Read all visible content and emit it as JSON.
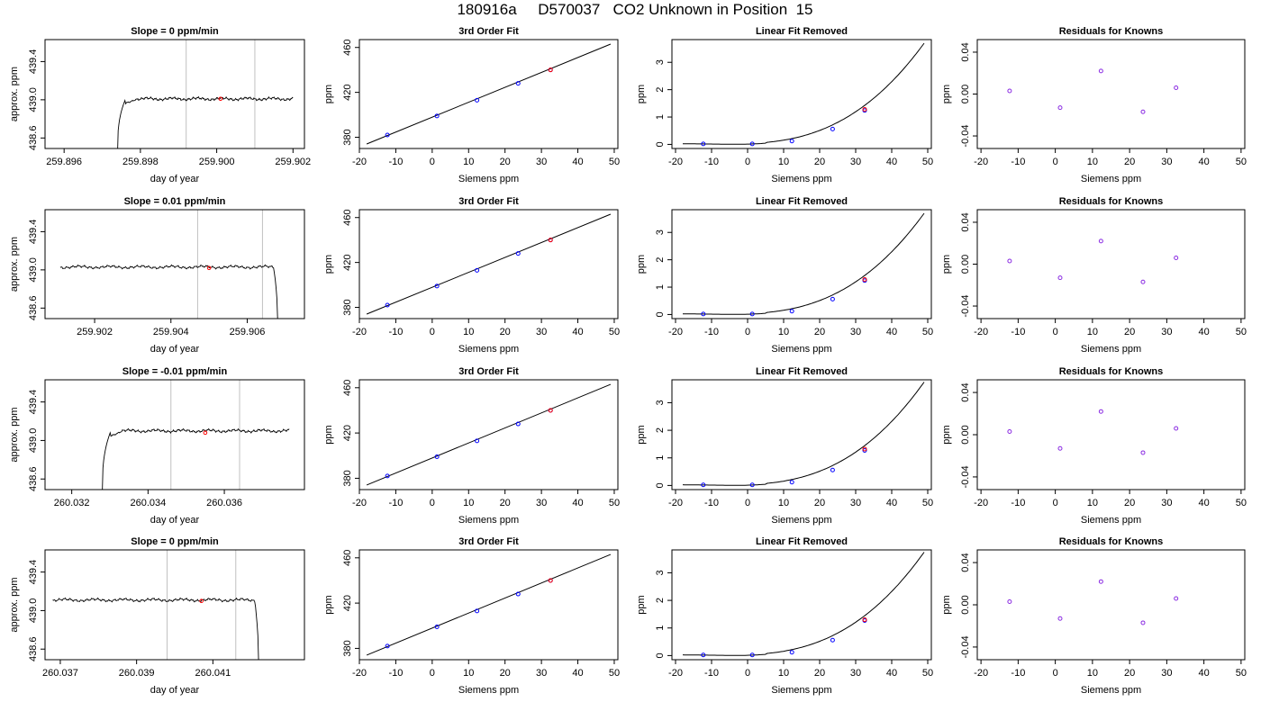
{
  "page": {
    "title": "180916a     D570037   CO2 Unknown in Position  15"
  },
  "style": {
    "trace_color": "#000000",
    "vline_color": "#c0c0c0",
    "known_point_color": "#0000ff",
    "unknown_point_color": "#ff0000",
    "residual_point_color": "#8a2be2"
  },
  "chart_data": [
    {
      "type": "line",
      "panel": "time-series",
      "title": "Slope =  0  ppm/min",
      "xlabel": "day of year",
      "ylabel": "approx. ppm",
      "xlim": [
        259.8955,
        259.9023
      ],
      "ylim": [
        438.49,
        439.63
      ],
      "xticks": [
        259.896,
        259.898,
        259.9,
        259.902
      ],
      "xtick_labels": [
        "259.896",
        "259.898",
        "259.900",
        "259.902"
      ],
      "yticks": [
        438.6,
        439.0,
        439.4
      ],
      "ytick_labels": [
        "438.6",
        "439.0",
        "439.4"
      ],
      "vlines": [
        259.8992,
        259.901
      ],
      "marker": {
        "x": 259.9001,
        "y": 439.01
      },
      "trace": {
        "x_start": 259.8974,
        "x_end": 259.902,
        "drop_side": "start",
        "level": 439.01
      },
      "grid": false
    },
    {
      "type": "scatter",
      "panel": "fit",
      "title": "3rd Order Fit",
      "xlabel": "Siemens ppm",
      "ylabel": "ppm",
      "xlim": [
        -20,
        51
      ],
      "ylim": [
        370,
        467
      ],
      "xticks": [
        -20,
        -10,
        0,
        10,
        20,
        30,
        40,
        50
      ],
      "xtick_labels": [
        "-20",
        "-10",
        "0",
        "10",
        "20",
        "30",
        "40",
        "50"
      ],
      "yticks": [
        380,
        420,
        460
      ],
      "ytick_labels": [
        "380",
        "420",
        "460"
      ],
      "line": {
        "x": [
          -18,
          49
        ],
        "y": [
          374,
          463
        ]
      },
      "knowns": {
        "x": [
          -12.3,
          1.3,
          12.3,
          23.6,
          32.5
        ],
        "y": [
          382,
          399,
          413,
          428,
          440
        ]
      },
      "unknown": {
        "x": 32.5,
        "y": 440
      },
      "grid": false
    },
    {
      "type": "scatter",
      "panel": "linear-removed",
      "title": "Linear Fit Removed",
      "xlabel": "Siemens ppm",
      "ylabel": "ppm",
      "xlim": [
        -21,
        51
      ],
      "ylim": [
        -0.15,
        3.83
      ],
      "xticks": [
        -20,
        -10,
        0,
        10,
        20,
        30,
        40,
        50
      ],
      "xtick_labels": [
        "-20",
        "-10",
        "0",
        "10",
        "20",
        "30",
        "40",
        "50"
      ],
      "yticks": [
        0,
        1,
        2,
        3
      ],
      "ytick_labels": [
        "0",
        "1",
        "2",
        "3"
      ],
      "curve": {
        "x_start": -18,
        "x_end": 49,
        "y_end": 3.7
      },
      "knowns": {
        "x": [
          -12.3,
          1.3,
          12.3,
          23.6,
          32.5
        ],
        "y": [
          0.02,
          0.02,
          0.12,
          0.56,
          1.24
        ]
      },
      "unknown": {
        "x": 32.5,
        "y": 1.28
      },
      "grid": false
    },
    {
      "type": "scatter",
      "panel": "residuals",
      "title": "Residuals for Knowns",
      "xlabel": "Siemens ppm",
      "ylabel": "ppm",
      "xlim": [
        -21,
        51
      ],
      "ylim": [
        -0.052,
        0.052
      ],
      "xticks": [
        -20,
        -10,
        0,
        10,
        20,
        30,
        40,
        50
      ],
      "xtick_labels": [
        "-20",
        "-10",
        "0",
        "10",
        "20",
        "30",
        "40",
        "50"
      ],
      "yticks": [
        -0.04,
        0,
        0.04
      ],
      "ytick_labels": [
        "-0.04",
        "0.00",
        "0.04"
      ],
      "points": {
        "x": [
          -12.3,
          1.3,
          12.3,
          23.6,
          32.5
        ],
        "y": [
          0.003,
          -0.013,
          0.022,
          -0.017,
          0.006
        ]
      },
      "grid": false
    },
    {
      "type": "line",
      "panel": "time-series",
      "title": "Slope =  0.01  ppm/min",
      "xlabel": "day of year",
      "ylabel": "approx. ppm",
      "xlim": [
        259.9007,
        259.9075
      ],
      "ylim": [
        438.49,
        439.63
      ],
      "xticks": [
        259.902,
        259.904,
        259.906
      ],
      "xtick_labels": [
        "259.902",
        "259.904",
        "259.906"
      ],
      "yticks": [
        438.6,
        439.0,
        439.4
      ],
      "ytick_labels": [
        "438.6",
        "439.0",
        "439.4"
      ],
      "vlines": [
        259.9047,
        259.9064
      ],
      "marker": {
        "x": 259.905,
        "y": 439.02
      },
      "trace": {
        "x_start": 259.9011,
        "x_end": 259.9068,
        "drop_side": "end",
        "level": 439.03
      },
      "grid": false
    },
    {
      "type": "scatter",
      "panel": "fit",
      "title": "3rd Order Fit",
      "xlabel": "Siemens ppm",
      "ylabel": "ppm",
      "xlim": [
        -20,
        51
      ],
      "ylim": [
        370,
        467
      ],
      "xticks": [
        -20,
        -10,
        0,
        10,
        20,
        30,
        40,
        50
      ],
      "xtick_labels": [
        "-20",
        "-10",
        "0",
        "10",
        "20",
        "30",
        "40",
        "50"
      ],
      "yticks": [
        380,
        420,
        460
      ],
      "ytick_labels": [
        "380",
        "420",
        "460"
      ],
      "line": {
        "x": [
          -18,
          49
        ],
        "y": [
          374,
          463
        ]
      },
      "knowns": {
        "x": [
          -12.3,
          1.3,
          12.3,
          23.6,
          32.5
        ],
        "y": [
          382,
          399,
          413,
          428,
          440
        ]
      },
      "unknown": {
        "x": 32.5,
        "y": 440
      },
      "grid": false
    },
    {
      "type": "scatter",
      "panel": "linear-removed",
      "title": "Linear Fit Removed",
      "xlabel": "Siemens ppm",
      "ylabel": "ppm",
      "xlim": [
        -21,
        51
      ],
      "ylim": [
        -0.15,
        3.83
      ],
      "xticks": [
        -20,
        -10,
        0,
        10,
        20,
        30,
        40,
        50
      ],
      "xtick_labels": [
        "-20",
        "-10",
        "0",
        "10",
        "20",
        "30",
        "40",
        "50"
      ],
      "yticks": [
        0,
        1,
        2,
        3
      ],
      "ytick_labels": [
        "0",
        "1",
        "2",
        "3"
      ],
      "curve": {
        "x_start": -18,
        "x_end": 49,
        "y_end": 3.7
      },
      "knowns": {
        "x": [
          -12.3,
          1.3,
          12.3,
          23.6,
          32.5
        ],
        "y": [
          0.02,
          0.02,
          0.12,
          0.56,
          1.24
        ]
      },
      "unknown": {
        "x": 32.5,
        "y": 1.28
      },
      "grid": false
    },
    {
      "type": "scatter",
      "panel": "residuals",
      "title": "Residuals for Knowns",
      "xlabel": "Siemens ppm",
      "ylabel": "ppm",
      "xlim": [
        -21,
        51
      ],
      "ylim": [
        -0.052,
        0.052
      ],
      "xticks": [
        -20,
        -10,
        0,
        10,
        20,
        30,
        40,
        50
      ],
      "xtick_labels": [
        "-20",
        "-10",
        "0",
        "10",
        "20",
        "30",
        "40",
        "50"
      ],
      "yticks": [
        -0.04,
        0,
        0.04
      ],
      "ytick_labels": [
        "-0.04",
        "0.00",
        "0.04"
      ],
      "points": {
        "x": [
          -12.3,
          1.3,
          12.3,
          23.6,
          32.5
        ],
        "y": [
          0.003,
          -0.013,
          0.022,
          -0.017,
          0.006
        ]
      },
      "grid": false
    },
    {
      "type": "line",
      "panel": "time-series",
      "title": "Slope =  -0.01  ppm/min",
      "xlabel": "day of year",
      "ylabel": "approx. ppm",
      "xlim": [
        260.0313,
        260.0381
      ],
      "ylim": [
        438.49,
        439.63
      ],
      "xticks": [
        260.032,
        260.034,
        260.036
      ],
      "xtick_labels": [
        "260.032",
        "260.034",
        "260.036"
      ],
      "yticks": [
        438.6,
        439.0,
        439.4
      ],
      "ytick_labels": [
        "438.6",
        "439.0",
        "439.4"
      ],
      "vlines": [
        260.0346,
        260.0364
      ],
      "marker": {
        "x": 260.0355,
        "y": 439.08
      },
      "trace": {
        "x_start": 260.0328,
        "x_end": 260.0377,
        "drop_side": "start",
        "level": 439.1
      },
      "grid": false
    },
    {
      "type": "scatter",
      "panel": "fit",
      "title": "3rd Order Fit",
      "xlabel": "Siemens ppm",
      "ylabel": "ppm",
      "xlim": [
        -20,
        51
      ],
      "ylim": [
        370,
        467
      ],
      "xticks": [
        -20,
        -10,
        0,
        10,
        20,
        30,
        40,
        50
      ],
      "xtick_labels": [
        "-20",
        "-10",
        "0",
        "10",
        "20",
        "30",
        "40",
        "50"
      ],
      "yticks": [
        380,
        420,
        460
      ],
      "ytick_labels": [
        "380",
        "420",
        "460"
      ],
      "line": {
        "x": [
          -18,
          49
        ],
        "y": [
          374,
          463
        ]
      },
      "knowns": {
        "x": [
          -12.3,
          1.3,
          12.3,
          23.6,
          32.5
        ],
        "y": [
          382,
          399,
          413,
          428,
          440
        ]
      },
      "unknown": {
        "x": 32.5,
        "y": 440
      },
      "grid": false
    },
    {
      "type": "scatter",
      "panel": "linear-removed",
      "title": "Linear Fit Removed",
      "xlabel": "Siemens ppm",
      "ylabel": "ppm",
      "xlim": [
        -21,
        51
      ],
      "ylim": [
        -0.15,
        3.83
      ],
      "xticks": [
        -20,
        -10,
        0,
        10,
        20,
        30,
        40,
        50
      ],
      "xtick_labels": [
        "-20",
        "-10",
        "0",
        "10",
        "20",
        "30",
        "40",
        "50"
      ],
      "yticks": [
        0,
        1,
        2,
        3
      ],
      "ytick_labels": [
        "0",
        "1",
        "2",
        "3"
      ],
      "curve": {
        "x_start": -18,
        "x_end": 49,
        "y_end": 3.75
      },
      "knowns": {
        "x": [
          -12.3,
          1.3,
          12.3,
          23.6,
          32.5
        ],
        "y": [
          0.02,
          0.02,
          0.12,
          0.56,
          1.27
        ]
      },
      "unknown": {
        "x": 32.5,
        "y": 1.32
      },
      "grid": false
    },
    {
      "type": "scatter",
      "panel": "residuals",
      "title": "Residuals for Knowns",
      "xlabel": "Siemens ppm",
      "ylabel": "ppm",
      "xlim": [
        -21,
        51
      ],
      "ylim": [
        -0.052,
        0.052
      ],
      "xticks": [
        -20,
        -10,
        0,
        10,
        20,
        30,
        40,
        50
      ],
      "xtick_labels": [
        "-20",
        "-10",
        "0",
        "10",
        "20",
        "30",
        "40",
        "50"
      ],
      "yticks": [
        -0.04,
        0,
        0.04
      ],
      "ytick_labels": [
        "-0.04",
        "0.00",
        "0.04"
      ],
      "points": {
        "x": [
          -12.3,
          1.3,
          12.3,
          23.6,
          32.5
        ],
        "y": [
          0.003,
          -0.013,
          0.022,
          -0.017,
          0.006
        ]
      },
      "grid": false
    },
    {
      "type": "line",
      "panel": "time-series",
      "title": "Slope =  0  ppm/min",
      "xlabel": "day of year",
      "ylabel": "approx. ppm",
      "xlim": [
        260.0366,
        260.0434
      ],
      "ylim": [
        438.49,
        439.63
      ],
      "xticks": [
        260.037,
        260.039,
        260.041
      ],
      "xtick_labels": [
        "260.037",
        "260.039",
        "260.041"
      ],
      "yticks": [
        438.6,
        439.0,
        439.4
      ],
      "ytick_labels": [
        "438.6",
        "439.0",
        "439.4"
      ],
      "vlines": [
        260.0398,
        260.0416
      ],
      "marker": {
        "x": 260.0407,
        "y": 439.1
      },
      "trace": {
        "x_start": 260.0368,
        "x_end": 260.0422,
        "drop_side": "end",
        "level": 439.11
      },
      "grid": false
    },
    {
      "type": "scatter",
      "panel": "fit",
      "title": "3rd Order Fit",
      "xlabel": "Siemens ppm",
      "ylabel": "ppm",
      "xlim": [
        -20,
        51
      ],
      "ylim": [
        370,
        467
      ],
      "xticks": [
        -20,
        -10,
        0,
        10,
        20,
        30,
        40,
        50
      ],
      "xtick_labels": [
        "-20",
        "-10",
        "0",
        "10",
        "20",
        "30",
        "40",
        "50"
      ],
      "yticks": [
        380,
        420,
        460
      ],
      "ytick_labels": [
        "380",
        "420",
        "460"
      ],
      "line": {
        "x": [
          -18,
          49
        ],
        "y": [
          374,
          463
        ]
      },
      "knowns": {
        "x": [
          -12.3,
          1.3,
          12.3,
          23.6,
          32.5
        ],
        "y": [
          382,
          399,
          413,
          428,
          440
        ]
      },
      "unknown": {
        "x": 32.5,
        "y": 440
      },
      "grid": false
    },
    {
      "type": "scatter",
      "panel": "linear-removed",
      "title": "Linear Fit Removed",
      "xlabel": "Siemens ppm",
      "ylabel": "ppm",
      "xlim": [
        -21,
        51
      ],
      "ylim": [
        -0.15,
        3.83
      ],
      "xticks": [
        -20,
        -10,
        0,
        10,
        20,
        30,
        40,
        50
      ],
      "xtick_labels": [
        "-20",
        "-10",
        "0",
        "10",
        "20",
        "30",
        "40",
        "50"
      ],
      "yticks": [
        0,
        1,
        2,
        3
      ],
      "ytick_labels": [
        "0",
        "1",
        "2",
        "3"
      ],
      "curve": {
        "x_start": -18,
        "x_end": 49,
        "y_end": 3.75
      },
      "knowns": {
        "x": [
          -12.3,
          1.3,
          12.3,
          23.6,
          32.5
        ],
        "y": [
          0.02,
          0.02,
          0.12,
          0.56,
          1.27
        ]
      },
      "unknown": {
        "x": 32.5,
        "y": 1.3
      },
      "grid": false
    },
    {
      "type": "scatter",
      "panel": "residuals",
      "title": "Residuals for Knowns",
      "xlabel": "Siemens ppm",
      "ylabel": "ppm",
      "xlim": [
        -21,
        51
      ],
      "ylim": [
        -0.052,
        0.052
      ],
      "xticks": [
        -20,
        -10,
        0,
        10,
        20,
        30,
        40,
        50
      ],
      "xtick_labels": [
        "-20",
        "-10",
        "0",
        "10",
        "20",
        "30",
        "40",
        "50"
      ],
      "yticks": [
        -0.04,
        0,
        0.04
      ],
      "ytick_labels": [
        "-0.04",
        "0.00",
        "0.04"
      ],
      "points": {
        "x": [
          -12.3,
          1.3,
          12.3,
          23.6,
          32.5
        ],
        "y": [
          0.003,
          -0.013,
          0.022,
          -0.017,
          0.006
        ]
      },
      "grid": false
    }
  ]
}
